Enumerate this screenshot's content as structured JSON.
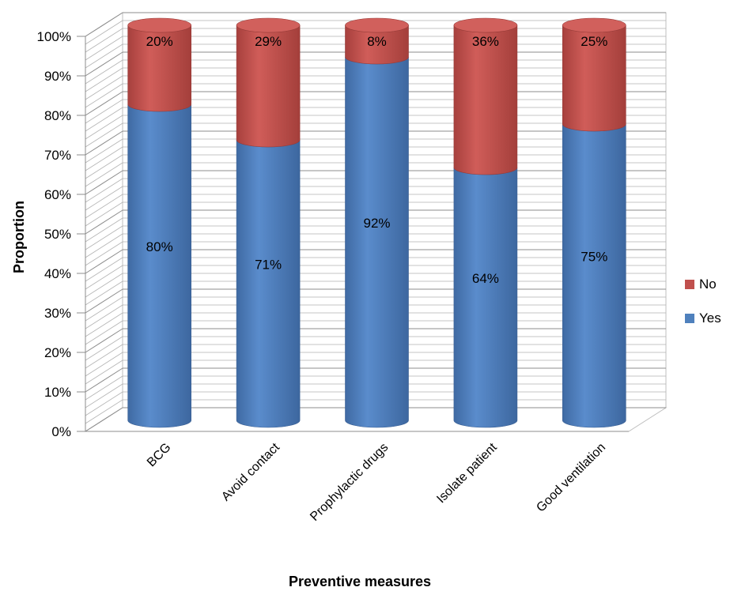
{
  "chart_data": {
    "type": "bar",
    "stacked": true,
    "three_d": true,
    "categories": [
      "BCG",
      "Avoid contact",
      "Prophylactic drugs",
      "Isolate patient",
      "Good ventilation"
    ],
    "series": [
      {
        "name": "Yes",
        "color": "#4f81bd",
        "values": [
          80,
          71,
          92,
          64,
          75
        ],
        "labels": [
          "80%",
          "71%",
          "92%",
          "64%",
          "75%"
        ]
      },
      {
        "name": "No",
        "color": "#c0504d",
        "values": [
          20,
          29,
          8,
          36,
          25
        ],
        "labels": [
          "20%",
          "29%",
          "8%",
          "36%",
          "25%"
        ]
      }
    ],
    "y_ticks": [
      "0%",
      "10%",
      "20%",
      "30%",
      "40%",
      "50%",
      "60%",
      "70%",
      "80%",
      "90%",
      "100%"
    ],
    "ylim": [
      0,
      100
    ],
    "xlabel": "Preventive measures",
    "ylabel": "Proportion",
    "legend_position": "right",
    "grid": true
  }
}
